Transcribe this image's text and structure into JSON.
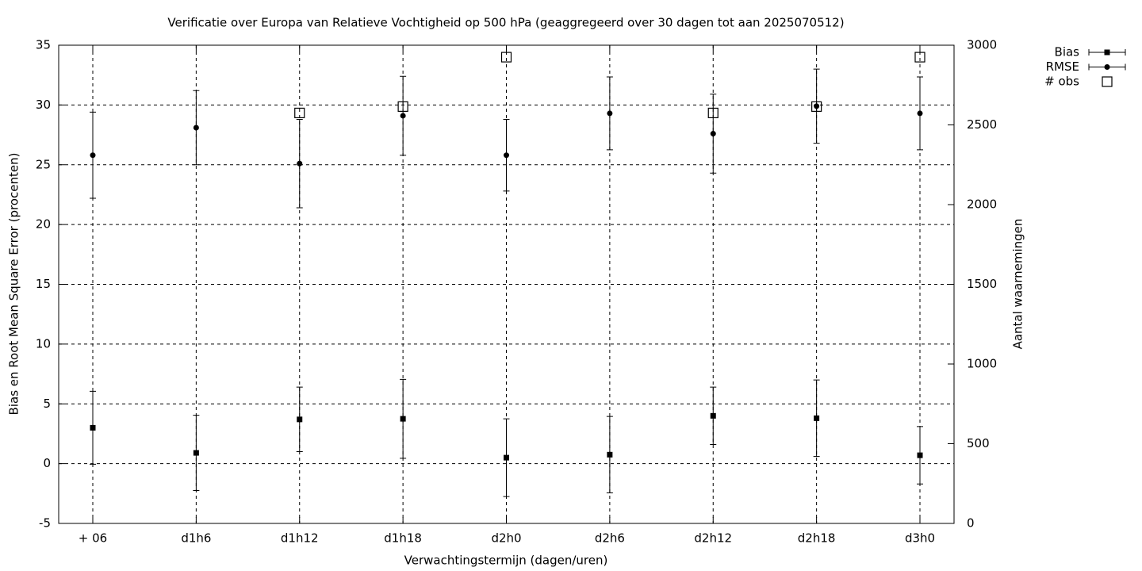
{
  "chart_data": {
    "type": "errorbar",
    "title": "Verificatie over Europa van Relatieve Vochtigheid op 500 hPa (geaggregeerd over 30 dagen tot aan 2025070512)",
    "x_label": "Verwachtingstermijn (dagen/uren)",
    "y_label": "Bias en Root Mean Square Error (procenten)",
    "y2_label": "Aantal waarnemingen",
    "categories": [
      "+ 06",
      "d1h6",
      "d1h12",
      "d1h18",
      "d2h0",
      "d2h6",
      "d2h12",
      "d2h18",
      "d3h0"
    ],
    "series": [
      {
        "name": "Bias",
        "marker": "square",
        "color": "#000000",
        "values": [
          3.0,
          0.9,
          3.7,
          3.75,
          0.5,
          0.75,
          4.0,
          3.8,
          0.7
        ],
        "errors": [
          3.05,
          3.15,
          2.7,
          3.3,
          3.25,
          3.2,
          2.4,
          3.2,
          2.4
        ]
      },
      {
        "name": "RMSE",
        "marker": "circle",
        "color": "#000000",
        "values": [
          25.8,
          28.1,
          25.1,
          29.1,
          25.8,
          29.3,
          27.6,
          29.9,
          29.3
        ],
        "errors": [
          3.6,
          3.1,
          3.7,
          3.3,
          3.0,
          3.05,
          3.3,
          3.1,
          3.05
        ]
      },
      {
        "name": "# obs",
        "marker": "open-square",
        "color": "#000000",
        "axis": "y2",
        "values": [
          null,
          null,
          2575,
          2615,
          2925,
          null,
          2575,
          2615,
          2925
        ]
      }
    ],
    "ylim": [
      -5,
      35
    ],
    "yticks": [
      -5,
      0,
      5,
      10,
      15,
      20,
      25,
      30,
      35
    ],
    "y2lim": [
      0,
      3000
    ],
    "y2ticks": [
      0,
      500,
      1000,
      1500,
      2000,
      2500,
      3000
    ],
    "grid": true,
    "legend": "top-right"
  }
}
